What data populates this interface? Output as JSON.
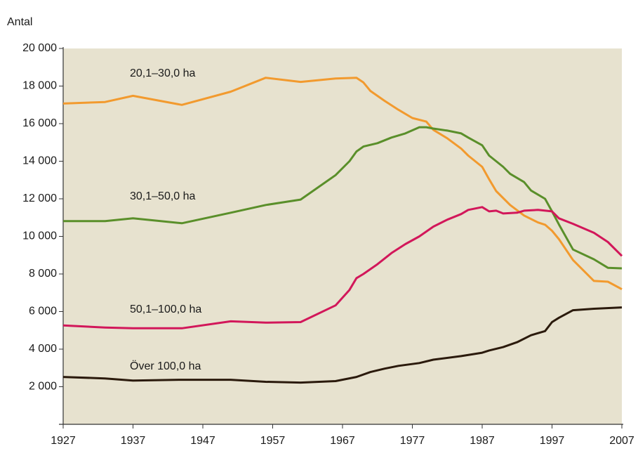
{
  "chart_data": {
    "type": "line",
    "y_label": "Antal",
    "xlim": [
      1927,
      2007
    ],
    "xticks": [
      1927,
      1937,
      1947,
      1957,
      1967,
      1977,
      1987,
      1997,
      2007
    ],
    "ylim": [
      0,
      20000
    ],
    "yticks": [
      {
        "value": 2000,
        "label": "2 000"
      },
      {
        "value": 4000,
        "label": "4 000"
      },
      {
        "value": 6000,
        "label": "6 000"
      },
      {
        "value": 8000,
        "label": "8 000"
      },
      {
        "value": 10000,
        "label": "10 000"
      },
      {
        "value": 12000,
        "label": "12 000"
      },
      {
        "value": 14000,
        "label": "14 000"
      },
      {
        "value": 16000,
        "label": "16 000"
      },
      {
        "value": 18000,
        "label": "18 000"
      },
      {
        "value": 20000,
        "label": "20 000"
      }
    ],
    "series": [
      {
        "name": "20,1–30,0 ha",
        "color": "#f29a2e",
        "x": [
          1927,
          1933,
          1937,
          1944,
          1951,
          1956,
          1961,
          1966,
          1969,
          1970,
          1971,
          1973,
          1975,
          1977,
          1979,
          1980,
          1982,
          1984,
          1985,
          1987,
          1988,
          1989,
          1991,
          1993,
          1995,
          1996,
          1997,
          1998,
          2000,
          2003,
          2005,
          2007
        ],
        "values": [
          17070,
          17150,
          17480,
          17000,
          17700,
          18440,
          18220,
          18400,
          18440,
          18190,
          17740,
          17220,
          16740,
          16300,
          16110,
          15670,
          15220,
          14670,
          14300,
          13700,
          13040,
          12410,
          11670,
          11110,
          10740,
          10620,
          10300,
          9850,
          8740,
          7630,
          7590,
          7190
        ]
      },
      {
        "name": "30,1–50,0 ha",
        "color": "#5a8f2a",
        "x": [
          1927,
          1933,
          1937,
          1944,
          1951,
          1956,
          1961,
          1966,
          1968,
          1969,
          1970,
          1972,
          1974,
          1976,
          1978,
          1979,
          1980,
          1982,
          1984,
          1985,
          1987,
          1988,
          1990,
          1991,
          1993,
          1994,
          1996,
          1997,
          1998,
          2000,
          2003,
          2005,
          2007
        ],
        "values": [
          10815,
          10815,
          10960,
          10700,
          11260,
          11670,
          11960,
          13260,
          14000,
          14520,
          14780,
          14960,
          15260,
          15480,
          15810,
          15810,
          15740,
          15630,
          15480,
          15260,
          14850,
          14300,
          13700,
          13330,
          12890,
          12440,
          12000,
          11330,
          10630,
          9300,
          8780,
          8330,
          8300
        ]
      },
      {
        "name": "50,1–100,0 ha",
        "color": "#d2175a",
        "x": [
          1927,
          1933,
          1937,
          1944,
          1951,
          1956,
          1961,
          1966,
          1968,
          1969,
          1970,
          1972,
          1974,
          1976,
          1978,
          1980,
          1982,
          1984,
          1985,
          1987,
          1988,
          1989,
          1990,
          1992,
          1993,
          1995,
          1997,
          1998,
          2000,
          2003,
          2005,
          2007
        ],
        "values": [
          5260,
          5150,
          5110,
          5110,
          5480,
          5410,
          5440,
          6330,
          7150,
          7780,
          8000,
          8520,
          9110,
          9590,
          10000,
          10520,
          10890,
          11190,
          11410,
          11560,
          11330,
          11370,
          11220,
          11260,
          11370,
          11410,
          11330,
          10960,
          10670,
          10190,
          9700,
          8960
        ]
      },
      {
        "name": "Över 100,0 ha",
        "color": "#2b1a0c",
        "x": [
          1927,
          1933,
          1937,
          1944,
          1951,
          1956,
          1961,
          1966,
          1969,
          1971,
          1973,
          1975,
          1978,
          1980,
          1984,
          1987,
          1988,
          1990,
          1992,
          1994,
          1996,
          1997,
          1998,
          2000,
          2003,
          2007
        ],
        "values": [
          2520,
          2440,
          2330,
          2370,
          2370,
          2260,
          2220,
          2300,
          2520,
          2780,
          2960,
          3110,
          3260,
          3440,
          3630,
          3810,
          3930,
          4110,
          4370,
          4740,
          4960,
          5440,
          5670,
          6070,
          6150,
          6220
        ]
      }
    ]
  }
}
